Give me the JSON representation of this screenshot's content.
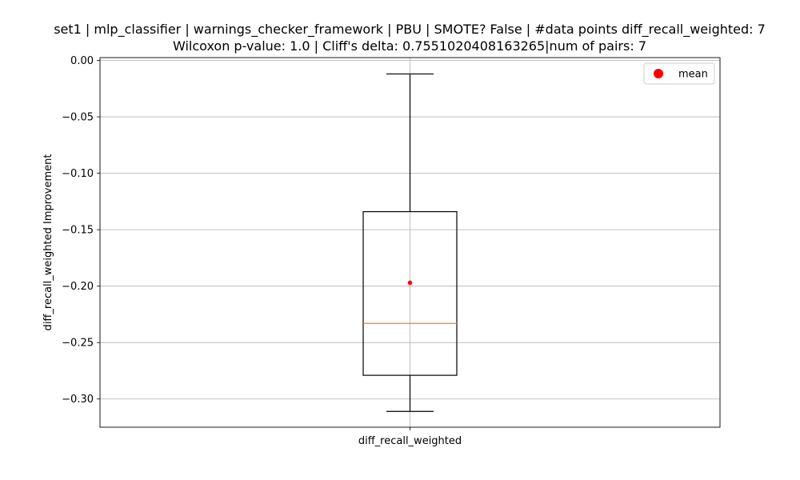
{
  "chart_data": {
    "type": "box",
    "title_lines": [
      "set1 | mlp_classifier | warnings_checker_framework | PBU | SMOTE? False | #data points diff_recall_weighted: 7",
      "Wilcoxon p-value: 1.0 | Cliff's delta: 0.7551020408163265|num of pairs: 7"
    ],
    "xlabel": "",
    "ylabel": "diff_recall_weighted Improvement",
    "categories": [
      "diff_recall_weighted"
    ],
    "ylim": [
      -0.325,
      0.0025
    ],
    "yticks": [
      0.0,
      -0.05,
      -0.1,
      -0.15,
      -0.2,
      -0.25,
      -0.3
    ],
    "ytick_labels": [
      "0.00",
      "−0.05",
      "−0.10",
      "−0.15",
      "−0.20",
      "−0.25",
      "−0.30"
    ],
    "grid": true,
    "legend": {
      "position": "top-right",
      "entries": [
        {
          "label": "mean",
          "color": "#ff0000",
          "marker": "circle"
        }
      ]
    },
    "boxes": [
      {
        "name": "diff_recall_weighted",
        "whisker_high": -0.012,
        "q3": -0.134,
        "median": -0.233,
        "q1": -0.279,
        "whisker_low": -0.311,
        "mean": -0.197
      }
    ],
    "colors": {
      "box": "#000000",
      "median": "#ff7f0e",
      "mean": "#ff0000",
      "grid": "#b0b0b0"
    }
  }
}
